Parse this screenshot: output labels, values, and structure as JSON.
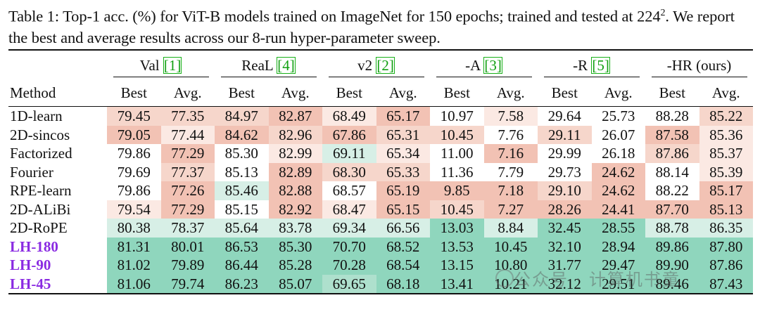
{
  "caption": {
    "label": "Table 1:",
    "text_a": " Top-1 acc. (%) for ViT-B models trained on ImageNet for ",
    "epochs": "150",
    "text_b": " epochs; trained and tested at ",
    "res_base": "224",
    "res_exp": "2",
    "text_c": ". We report the best and average results across our ",
    "runs": "8",
    "text_d": "-run hyper-parameter sweep."
  },
  "table": {
    "method_header": "Method",
    "sub_headers": [
      "Best",
      "Avg."
    ],
    "groups": [
      {
        "name": "Val ",
        "ref": "[1]"
      },
      {
        "name": "ReaL ",
        "ref": "[4]"
      },
      {
        "name": "v2 ",
        "ref": "[2]"
      },
      {
        "name": "-A ",
        "ref": "[3]"
      },
      {
        "name": "-R ",
        "ref": "[5]"
      },
      {
        "name": "-HR (ours)",
        "ref": ""
      }
    ],
    "rows": [
      {
        "method": "1D-learn",
        "ours": false,
        "values": [
          "79.45",
          "77.35",
          "84.97",
          "82.87",
          "68.49",
          "65.17",
          "10.97",
          "7.58",
          "29.64",
          "25.73",
          "88.28",
          "85.22"
        ]
      },
      {
        "method": "2D-sincos",
        "ours": false,
        "values": [
          "79.05",
          "77.44",
          "84.62",
          "82.96",
          "67.86",
          "65.31",
          "10.45",
          "7.76",
          "29.11",
          "26.07",
          "87.58",
          "85.36"
        ]
      },
      {
        "method": "Factorized",
        "ours": false,
        "values": [
          "79.86",
          "77.29",
          "85.30",
          "82.99",
          "69.11",
          "65.34",
          "11.00",
          "7.16",
          "29.99",
          "26.18",
          "87.86",
          "85.37"
        ]
      },
      {
        "method": "Fourier",
        "ours": false,
        "values": [
          "79.69",
          "77.37",
          "85.13",
          "82.89",
          "68.30",
          "65.33",
          "11.36",
          "7.79",
          "29.73",
          "24.62",
          "88.14",
          "85.39"
        ]
      },
      {
        "method": "RPE-learn",
        "ours": false,
        "values": [
          "79.86",
          "77.26",
          "85.46",
          "82.88",
          "68.57",
          "65.19",
          "9.85",
          "7.18",
          "29.10",
          "24.62",
          "88.22",
          "85.17"
        ]
      },
      {
        "method": "2D-ALiBi",
        "ours": false,
        "values": [
          "79.54",
          "77.29",
          "85.15",
          "82.92",
          "68.47",
          "65.15",
          "10.45",
          "7.27",
          "28.26",
          "24.41",
          "87.70",
          "85.13"
        ]
      },
      {
        "method": "2D-RoPE",
        "ours": false,
        "values": [
          "80.38",
          "78.37",
          "85.64",
          "83.78",
          "69.34",
          "66.56",
          "13.03",
          "8.84",
          "32.45",
          "28.55",
          "88.78",
          "86.35"
        ]
      },
      {
        "method": "LH-180",
        "ours": true,
        "values": [
          "81.31",
          "80.01",
          "86.53",
          "85.30",
          "70.70",
          "68.52",
          "13.53",
          "10.45",
          "32.10",
          "28.94",
          "89.86",
          "87.80"
        ]
      },
      {
        "method": "LH-90",
        "ours": true,
        "values": [
          "81.02",
          "79.89",
          "86.44",
          "85.28",
          "70.28",
          "68.54",
          "13.15",
          "10.80",
          "31.77",
          "29.47",
          "89.90",
          "87.86"
        ]
      },
      {
        "method": "LH-45",
        "ours": true,
        "values": [
          "81.06",
          "79.74",
          "86.23",
          "85.07",
          "69.65",
          "68.18",
          "13.41",
          "10.21",
          "32.12",
          "29.51",
          "89.46",
          "87.43"
        ]
      }
    ],
    "colors": {
      "bad_strong": "#f2c2b4",
      "bad_mid": "#f6d6cb",
      "bad_light": "#fbe9e3",
      "neutral": "#ffffff",
      "good_light": "#d7efe6",
      "good_mid": "#aee0cd",
      "good_strong": "#8fd6bd",
      "ours_color": "#8a2be2",
      "ref_color": "#12a012"
    }
  },
  "watermark": {
    "text": "公众号 · 计算机书童",
    "logo": "wechat-logo-icon"
  }
}
